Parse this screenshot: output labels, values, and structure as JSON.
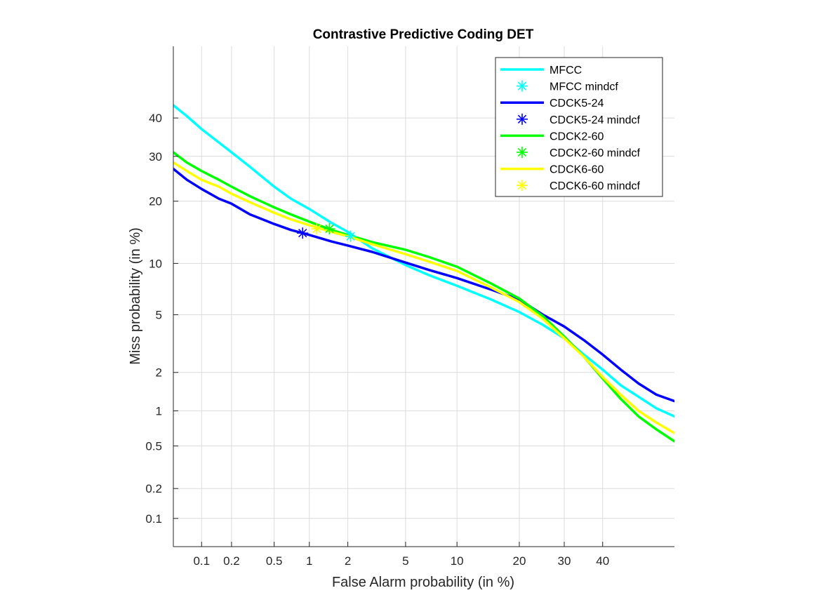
{
  "chart_data": {
    "type": "line",
    "title": "Contrastive Predictive Coding DET",
    "xlabel": "False Alarm probability (in %)",
    "ylabel": "Miss probability (in %)",
    "scale": "probit",
    "xlim": [
      0.05,
      60
    ],
    "ylim": [
      0.05,
      60
    ],
    "xticks": [
      0.1,
      0.2,
      0.5,
      1,
      2,
      5,
      10,
      20,
      30,
      40
    ],
    "xtick_labels": [
      "0.1",
      "0.2",
      "0.5",
      "1",
      "2",
      "5",
      "10",
      "20",
      "30",
      "40"
    ],
    "yticks": [
      0.1,
      0.2,
      0.5,
      1,
      2,
      5,
      10,
      20,
      30,
      40
    ],
    "ytick_labels": [
      "0.1",
      "0.2",
      "0.5",
      "1",
      "2",
      "5",
      "10",
      "20",
      "30",
      "40"
    ],
    "grid": true,
    "legend_position": "top-right",
    "legend": [
      "MFCC",
      "MFCC mindcf",
      "CDCK5-24",
      "CDCK5-24 mindcf",
      "CDCK2-60",
      "CDCK2-60 mindcf",
      "CDCK6-60",
      "CDCK6-60 mindcf"
    ],
    "series": [
      {
        "name": "MFCC",
        "color": "#00ffff",
        "x": [
          0.05,
          0.07,
          0.1,
          0.15,
          0.2,
          0.3,
          0.5,
          0.7,
          1,
          1.5,
          2,
          3,
          5,
          7,
          10,
          15,
          20,
          25,
          30,
          35,
          40,
          45,
          50,
          55,
          60
        ],
        "y": [
          43.5,
          40.5,
          37,
          33.5,
          31,
          27.5,
          23,
          20.5,
          18.5,
          16,
          14.5,
          12,
          9.8,
          8.6,
          7.5,
          6.2,
          5.2,
          4.3,
          3.5,
          2.7,
          2.1,
          1.6,
          1.3,
          1.05,
          0.9
        ]
      },
      {
        "name": "MFCC mindcf",
        "color": "#00ffff",
        "marker": "asterisk",
        "x": [
          2.1
        ],
        "y": [
          13.8
        ]
      },
      {
        "name": "CDCK5-24",
        "color": "#0000ff",
        "x": [
          0.05,
          0.07,
          0.1,
          0.15,
          0.2,
          0.3,
          0.5,
          0.7,
          1,
          1.5,
          2,
          3,
          5,
          7,
          10,
          15,
          20,
          25,
          30,
          35,
          40,
          45,
          50,
          55,
          60
        ],
        "y": [
          27,
          24.5,
          22.5,
          20.5,
          19.5,
          17.5,
          15.8,
          14.8,
          14,
          13,
          12.4,
          11.5,
          10.1,
          9.2,
          8.3,
          7.1,
          6.2,
          5.0,
          4.2,
          3.4,
          2.7,
          2.1,
          1.65,
          1.35,
          1.2
        ]
      },
      {
        "name": "CDCK5-24 mindcf",
        "color": "#0000ff",
        "marker": "asterisk",
        "x": [
          0.88
        ],
        "y": [
          14.3
        ]
      },
      {
        "name": "CDCK2-60",
        "color": "#00ff00",
        "x": [
          0.05,
          0.07,
          0.1,
          0.15,
          0.2,
          0.3,
          0.5,
          0.7,
          1,
          1.5,
          2,
          3,
          5,
          7,
          10,
          15,
          20,
          25,
          30,
          35,
          40,
          45,
          50,
          55,
          60
        ],
        "y": [
          31,
          28.5,
          26.5,
          24.5,
          23,
          21,
          18.8,
          17.5,
          16.2,
          14.8,
          14,
          12.9,
          11.8,
          10.8,
          9.6,
          7.7,
          6.3,
          4.9,
          3.6,
          2.6,
          1.8,
          1.25,
          0.9,
          0.7,
          0.55
        ]
      },
      {
        "name": "CDCK2-60 mindcf",
        "color": "#00ff00",
        "marker": "asterisk",
        "x": [
          1.45
        ],
        "y": [
          15
        ]
      },
      {
        "name": "CDCK6-60",
        "color": "#ffff00",
        "x": [
          0.05,
          0.07,
          0.1,
          0.15,
          0.2,
          0.3,
          0.5,
          0.7,
          1,
          1.5,
          2,
          3,
          5,
          7,
          10,
          15,
          20,
          25,
          30,
          35,
          40,
          45,
          50,
          55,
          60
        ],
        "y": [
          28.5,
          26.5,
          24.5,
          23,
          21.5,
          19.8,
          17.8,
          16.6,
          15.6,
          14.5,
          13.8,
          12.6,
          11.2,
          10.2,
          9.1,
          7.3,
          6.0,
          4.7,
          3.5,
          2.6,
          1.85,
          1.35,
          1.0,
          0.8,
          0.65
        ]
      },
      {
        "name": "CDCK6-60 mindcf",
        "color": "#ffff00",
        "marker": "asterisk",
        "x": [
          1.15
        ],
        "y": [
          15
        ]
      }
    ]
  }
}
